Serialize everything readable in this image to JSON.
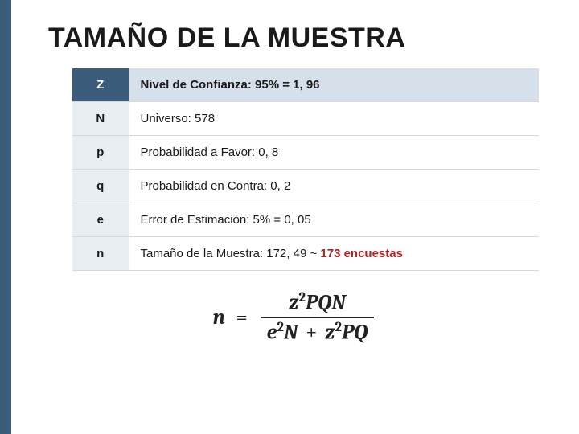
{
  "title": "TAMAÑO DE LA MUESTRA",
  "accent_color": "#3b5c7a",
  "table": {
    "rows": [
      {
        "symbol": "Z",
        "desc": "Nivel de Confianza: 95% = 1, 96",
        "header": true
      },
      {
        "symbol": "N",
        "desc": "Universo: 578"
      },
      {
        "symbol": "p",
        "desc": "Probabilidad a Favor: 0, 8"
      },
      {
        "symbol": "q",
        "desc": "Probabilidad en Contra: 0, 2"
      },
      {
        "symbol": "e",
        "desc": "Error de Estimación: 5% = 0, 05"
      },
      {
        "symbol": "n",
        "desc": "Tamaño de la Muestra: 172, 49 ~ ",
        "highlight": "173 encuestas"
      }
    ]
  },
  "formula": {
    "lhs": "n",
    "numerator": "z²PQN",
    "denom_left": "e²N",
    "denom_plus": "+",
    "denom_right": "z²PQ"
  }
}
